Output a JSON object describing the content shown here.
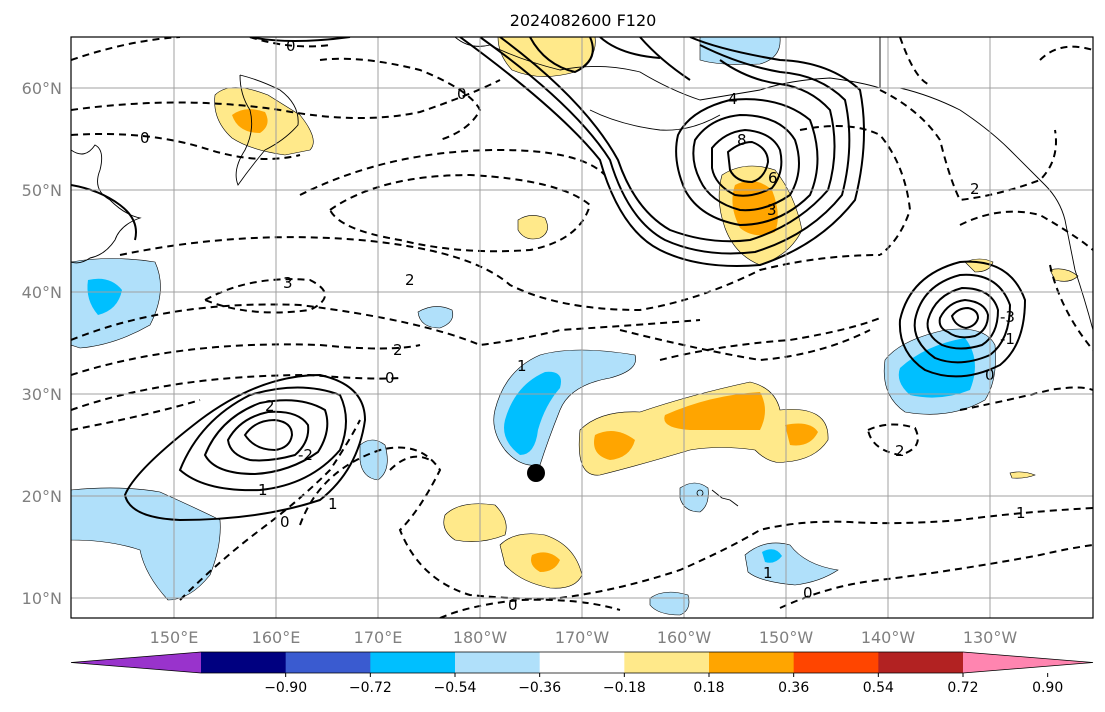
{
  "title": "2024082600 F120",
  "lat_labels": [
    "60°N",
    "50°N",
    "40°N",
    "30°N",
    "20°N",
    "10°N"
  ],
  "lon_labels": [
    "150°E",
    "160°E",
    "170°E",
    "180°W",
    "170°W",
    "160°W",
    "150°W",
    "140°W",
    "130°W"
  ],
  "colorbar": {
    "ticks": [
      "−0.90",
      "−0.72",
      "−0.54",
      "−0.36",
      "−0.18",
      "0.18",
      "0.36",
      "0.54",
      "0.72",
      "0.90"
    ],
    "colors": [
      "#9933cc",
      "#000080",
      "#3a5bd0",
      "#00bfff",
      "#b0e0fa",
      "#ffffff",
      "#ffe98a",
      "#ffa500",
      "#ff4500",
      "#b22222",
      "#ff85b0"
    ]
  },
  "contour_labels": [
    "0",
    "0",
    "0",
    "0",
    "0",
    "0",
    "0",
    "0",
    "1",
    "1",
    "1",
    "1",
    "1",
    "2",
    "2",
    "2",
    "2",
    "2",
    "3",
    "3",
    "4",
    "6",
    "8",
    "-1",
    "-2",
    "-3"
  ],
  "colors": {
    "warm_light": "#ffe98a",
    "warm_mid": "#ffa500",
    "cool_light": "#b0e0fa",
    "cool_mid": "#00bfff"
  }
}
